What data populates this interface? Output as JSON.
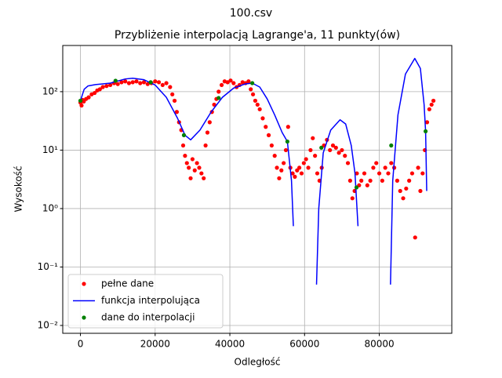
{
  "chart_data": {
    "type": "line",
    "suptitle": "100.csv",
    "title": "Przybliżenie interpolacją Lagrange'a, 11 punkty(ów)",
    "xlabel": "Odległość",
    "ylabel": "Wysokość",
    "xlim": [
      -4734,
      99414
    ],
    "ylim": [
      0.00734,
      617
    ],
    "yscale": "log",
    "grid": true,
    "legend": "lower left",
    "xticks": [
      0,
      20000,
      40000,
      60000,
      80000
    ],
    "yticks": [
      {
        "value": 0.01,
        "label": "10⁻²"
      },
      {
        "value": 0.1,
        "label": "10⁻¹"
      },
      {
        "value": 1,
        "label": "10⁰"
      },
      {
        "value": 10,
        "label": "10¹"
      },
      {
        "value": 100,
        "label": "10²"
      }
    ],
    "series": [
      {
        "name": "pełne dane",
        "color": "#ff0000",
        "style": "points",
        "x": [
          0,
          300,
          600,
          900,
          1500,
          2200,
          3000,
          3800,
          4500,
          5200,
          6000,
          7000,
          8000,
          9000,
          10000,
          11000,
          12000,
          13000,
          14000,
          15000,
          16000,
          17000,
          18000,
          19000,
          20000,
          21000,
          22000,
          23000,
          24000,
          24600,
          25200,
          25800,
          26400,
          27000,
          27500,
          28000,
          28500,
          29000,
          29500,
          30000,
          30600,
          31200,
          31800,
          32400,
          33000,
          33500,
          34000,
          34600,
          35200,
          35800,
          36400,
          37000,
          37800,
          38600,
          39400,
          40200,
          41000,
          41800,
          42600,
          43400,
          44200,
          45000,
          45600,
          46200,
          46800,
          47400,
          48000,
          48800,
          49600,
          50400,
          51200,
          52000,
          52600,
          53200,
          53800,
          54400,
          55000,
          55600,
          56200,
          56800,
          57400,
          58000,
          58600,
          59200,
          59800,
          60400,
          61000,
          61600,
          62200,
          62800,
          63400,
          64000,
          64600,
          65200,
          66000,
          66800,
          67600,
          68400,
          69200,
          70000,
          70800,
          71600,
          72200,
          72800,
          73400,
          74000,
          74600,
          75200,
          76000,
          76800,
          77600,
          78400,
          79200,
          80000,
          80800,
          81600,
          82400,
          83200,
          84000,
          84800,
          85600,
          86400,
          87200,
          88000,
          88800,
          89600,
          90400,
          91000,
          91600,
          92200,
          92800,
          93400,
          94000,
          94500
        ],
        "values": [
          65,
          58,
          72,
          68,
          75,
          80,
          90,
          95,
          105,
          110,
          120,
          125,
          130,
          140,
          135,
          145,
          150,
          140,
          145,
          150,
          140,
          145,
          135,
          140,
          150,
          145,
          130,
          140,
          120,
          90,
          70,
          45,
          30,
          22,
          12,
          8,
          6,
          5,
          3.3,
          7,
          4.5,
          6,
          5,
          4,
          3.3,
          12,
          20,
          30,
          45,
          60,
          75,
          100,
          130,
          150,
          145,
          155,
          140,
          120,
          130,
          145,
          140,
          150,
          110,
          90,
          70,
          60,
          50,
          35,
          25,
          18,
          12,
          8,
          5,
          3.3,
          4.5,
          6,
          10,
          25,
          5,
          4,
          3.5,
          4.5,
          5,
          4,
          6,
          7,
          5,
          10,
          16,
          8,
          4,
          3,
          5,
          12,
          15,
          10,
          12,
          11,
          9,
          10,
          8,
          6,
          3,
          1.5,
          2,
          4,
          2.5,
          3,
          4,
          2.5,
          3,
          5,
          6,
          4,
          3,
          5,
          4,
          6,
          5,
          3,
          2,
          1.5,
          2.2,
          3,
          4,
          0.32,
          5,
          2,
          4,
          10,
          30,
          50,
          60,
          70
        ]
      },
      {
        "name": "funkcja interpolująca",
        "color": "#0000ff",
        "style": "line",
        "x": [
          0,
          1000,
          2000,
          4000,
          8000,
          12000,
          14000,
          17000,
          20000,
          23000,
          26000,
          28000,
          29500,
          32000,
          35000,
          38000,
          41000,
          44000,
          46000,
          48000,
          50000,
          52000,
          54000,
          55400,
          56500,
          57000,
          57300,
          63200,
          63800,
          65000,
          67000,
          69500,
          71000,
          72500,
          73500,
          74300,
          74600,
          83000,
          83600,
          85000,
          87000,
          89500,
          91000,
          92000,
          92400,
          92700
        ],
        "values": [
          70,
          110,
          125,
          132,
          140,
          165,
          170,
          160,
          130,
          80,
          35,
          18,
          15,
          22,
          45,
          80,
          115,
          135,
          140,
          120,
          75,
          40,
          20,
          14,
          3,
          0.5,
          null,
          0.05,
          1,
          9,
          22,
          33,
          28,
          12,
          4,
          0.5,
          null,
          0.05,
          3,
          40,
          200,
          370,
          250,
          60,
          21,
          2
        ]
      },
      {
        "name": "dane do interpolacji",
        "color": "#008000",
        "style": "points",
        "x": [
          0,
          9400,
          18800,
          27700,
          37000,
          46000,
          55400,
          64500,
          73900,
          83200,
          92400
        ],
        "values": [
          70,
          154,
          145,
          18,
          78,
          140,
          14,
          11,
          2.3,
          12,
          21
        ]
      }
    ]
  }
}
